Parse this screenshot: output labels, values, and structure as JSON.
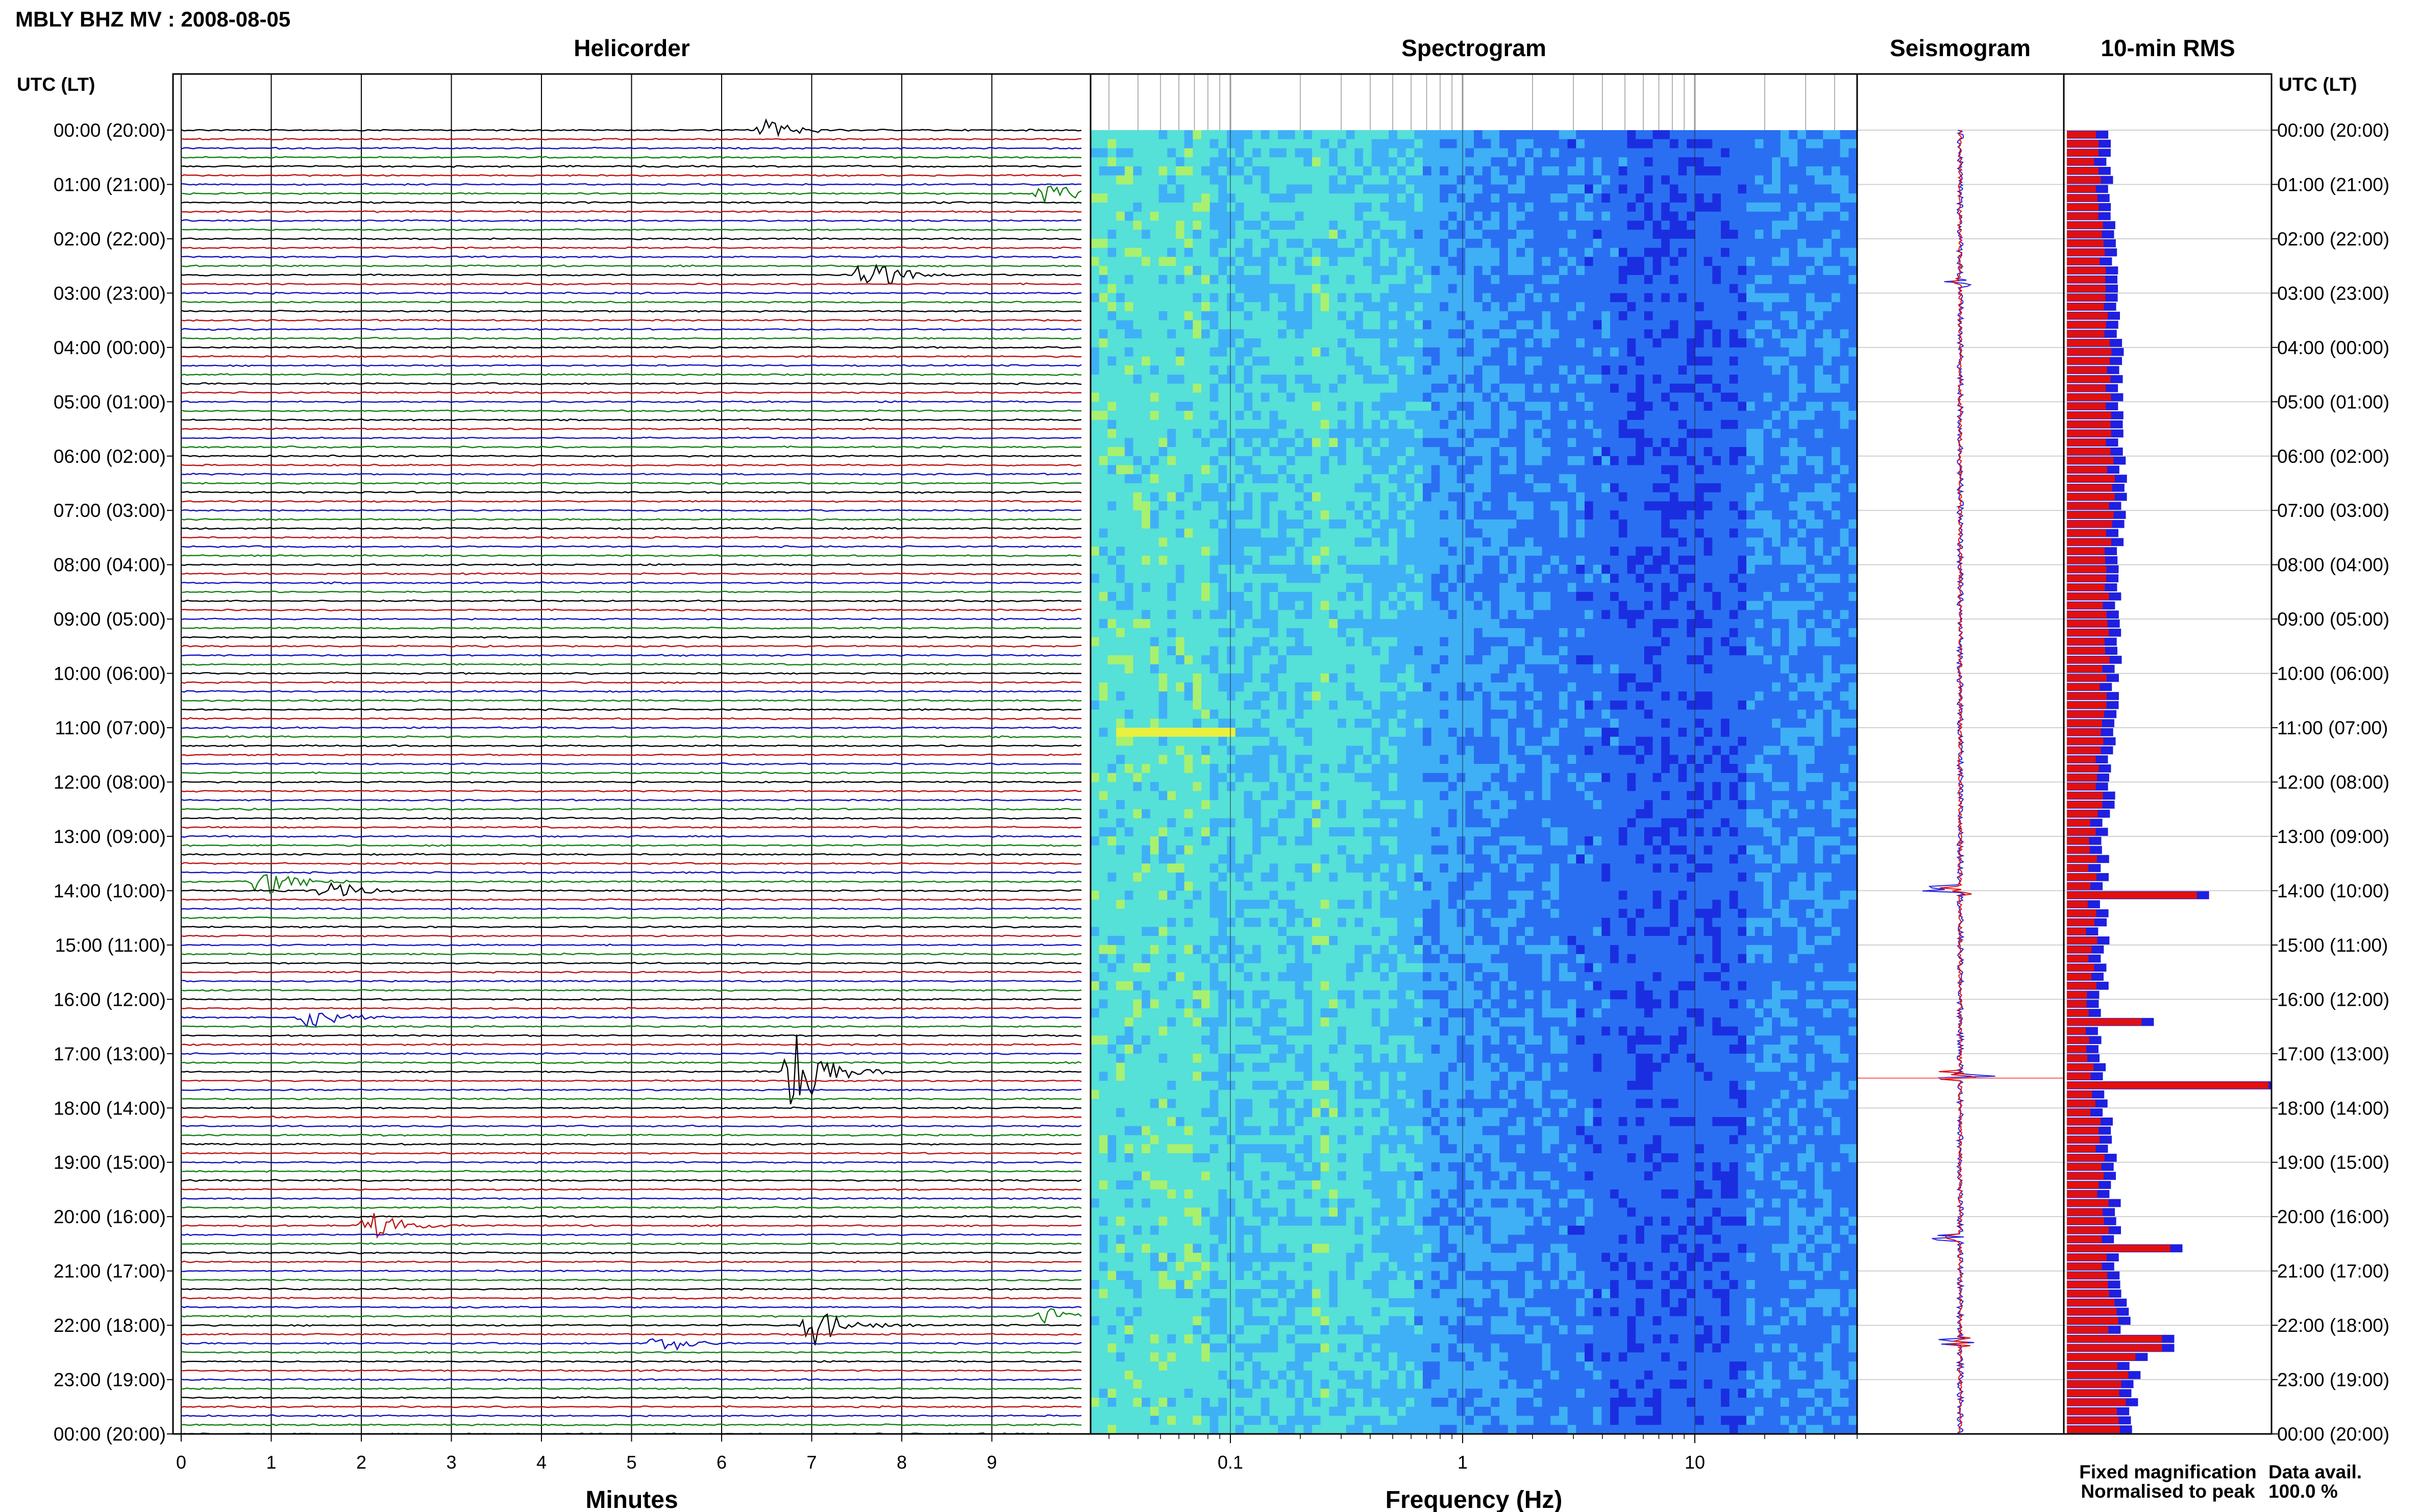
{
  "header": {
    "title": "MBLY BHZ MV : 2008-08-05",
    "utc_left": "UTC (LT)",
    "utc_right": "UTC (LT)"
  },
  "panels": {
    "helicorder": "Helicorder",
    "spectrogram": "Spectrogram",
    "seismogram": "Seismogram",
    "rms": "10-min RMS"
  },
  "hour_labels": [
    "00:00 (20:00)",
    "01:00 (21:00)",
    "02:00 (22:00)",
    "03:00 (23:00)",
    "04:00 (00:00)",
    "05:00 (01:00)",
    "06:00 (02:00)",
    "07:00 (03:00)",
    "08:00 (04:00)",
    "09:00 (05:00)",
    "10:00 (06:00)",
    "11:00 (07:00)",
    "12:00 (08:00)",
    "13:00 (09:00)",
    "14:00 (10:00)",
    "15:00 (11:00)",
    "16:00 (12:00)",
    "17:00 (13:00)",
    "18:00 (14:00)",
    "19:00 (15:00)",
    "20:00 (16:00)",
    "21:00 (17:00)",
    "22:00 (18:00)",
    "23:00 (19:00)",
    "00:00 (20:00)"
  ],
  "legend": {
    "fixed": "Fixed magnification",
    "normalised": "Normalised to peak",
    "fixed_color": "#1f1fe0",
    "normalised_color": "#e01010"
  },
  "data_avail": {
    "label": "Data avail.",
    "value": "100.0 %"
  },
  "chart_data": [
    {
      "type": "line",
      "panel": "helicorder",
      "title": "Helicorder",
      "xlabel": "Minutes",
      "x_ticks": [
        "0",
        "1",
        "2",
        "3",
        "4",
        "5",
        "6",
        "7",
        "8",
        "9"
      ],
      "xlim": [
        0,
        10
      ],
      "rows_per_hour": 6,
      "trace_colors": [
        "#000000",
        "#c01010",
        "#1010c0",
        "#108010"
      ],
      "events": [
        {
          "hour": 0.0,
          "minute": 6.5,
          "amp": 0.8
        },
        {
          "hour": 1.2,
          "minute": 9.6,
          "amp": 0.9
        },
        {
          "hour": 2.6,
          "minute": 7.6,
          "amp": 1.6
        },
        {
          "hour": 13.9,
          "minute": 0.9,
          "amp": 1.5
        },
        {
          "hour": 14.0,
          "minute": 1.6,
          "amp": 1.0
        },
        {
          "hour": 16.3,
          "minute": 1.4,
          "amp": 0.9
        },
        {
          "hour": 17.3,
          "minute": 6.8,
          "amp": 3.5
        },
        {
          "hour": 20.2,
          "minute": 2.1,
          "amp": 1.2
        },
        {
          "hour": 21.9,
          "minute": 9.6,
          "amp": 0.8
        },
        {
          "hour": 22.0,
          "minute": 7.0,
          "amp": 1.7
        },
        {
          "hour": 22.4,
          "minute": 5.3,
          "amp": 0.8
        }
      ]
    },
    {
      "type": "heatmap",
      "panel": "spectrogram",
      "title": "Spectrogram",
      "xlabel": "Frequency (Hz)",
      "x_scale": "log",
      "x_ticks": [
        "0.1",
        "1",
        "10"
      ],
      "xlim": [
        0.025,
        50
      ],
      "colormap": [
        "#1a2ee0",
        "#2a6ff2",
        "#3fb0f5",
        "#55e0d8",
        "#a8f070",
        "#e8f040"
      ]
    },
    {
      "type": "line",
      "panel": "seismogram",
      "title": "Seismogram",
      "spikes": [
        {
          "hour": 2.8,
          "width": 0.55
        },
        {
          "hour": 14.0,
          "width": 0.85
        },
        {
          "hour": 17.4,
          "width": 1.0
        },
        {
          "hour": 20.4,
          "width": 0.7
        },
        {
          "hour": 22.3,
          "width": 0.5
        }
      ]
    },
    {
      "type": "bar",
      "panel": "rms",
      "title": "10-min RMS",
      "series": [
        {
          "name": "Fixed magnification",
          "color": "#1f1fe0"
        },
        {
          "name": "Normalised to peak",
          "color": "#e01010"
        }
      ],
      "peaks": [
        {
          "hour": 14.0,
          "value": 0.65
        },
        {
          "hour": 16.35,
          "value": 0.38
        },
        {
          "hour": 17.5,
          "value": 1.0
        },
        {
          "hour": 20.45,
          "value": 0.52
        },
        {
          "hour": 22.25,
          "value": 0.48
        },
        {
          "hour": 22.55,
          "value": 0.35
        }
      ],
      "baseline_min": 0.1,
      "baseline_max": 0.3
    }
  ]
}
